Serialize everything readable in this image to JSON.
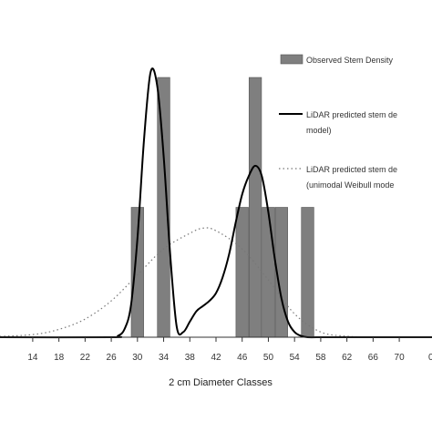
{
  "chart_data": {
    "type": "bar",
    "xlabel": "2 cm Diameter Classes",
    "ylabel": "",
    "xlim": [
      9,
      75
    ],
    "ylim": [
      0,
      1
    ],
    "grid": false,
    "legend_position": "right",
    "colors": {
      "bar_fill": "#7f7f7f",
      "bar_stroke": "#555555",
      "line": "#000000",
      "dotted": "#777777",
      "axis": "#333333"
    },
    "x_ticks": [
      "14",
      "18",
      "22",
      "26",
      "30",
      "34",
      "38",
      "42",
      "46",
      "50",
      "54",
      "58",
      "62",
      "66",
      "70"
    ],
    "x_ticks_partial": [
      "0"
    ],
    "legend": [
      {
        "label": "Observed Stem Density",
        "swatch": "bar"
      },
      {
        "label": "LiDAR predicted stem de",
        "label2": "model)",
        "swatch": "line"
      },
      {
        "label": "LiDAR predicted stem de",
        "label2": "(unimodal Weibull mode",
        "swatch": "dotted"
      }
    ],
    "series": [
      {
        "type": "bar",
        "x": [
          30,
          34,
          46,
          48,
          50,
          52,
          56
        ],
        "values": [
          0.5,
          1.0,
          0.5,
          1.0,
          0.5,
          0.5,
          0.5
        ]
      },
      {
        "type": "line",
        "x": [
          9,
          26,
          27,
          28,
          29,
          30,
          31,
          32,
          33,
          34,
          35,
          36,
          37,
          38,
          39,
          40,
          41,
          42,
          43,
          44,
          45,
          46,
          47,
          48,
          49,
          50,
          51,
          52,
          53,
          54,
          55,
          56,
          58,
          60,
          75
        ],
        "values": [
          0,
          0,
          0.005,
          0.03,
          0.12,
          0.38,
          0.76,
          1.02,
          0.97,
          0.7,
          0.32,
          0.04,
          0.02,
          0.06,
          0.1,
          0.12,
          0.14,
          0.17,
          0.23,
          0.32,
          0.44,
          0.55,
          0.62,
          0.66,
          0.62,
          0.48,
          0.3,
          0.15,
          0.06,
          0.02,
          0.005,
          0,
          0,
          0,
          0
        ]
      },
      {
        "type": "dotted",
        "x": [
          9,
          14,
          18,
          22,
          26,
          30,
          34,
          38,
          40,
          42,
          46,
          50,
          54,
          58,
          62,
          66,
          75
        ],
        "values": [
          0.003,
          0.01,
          0.03,
          0.07,
          0.14,
          0.24,
          0.34,
          0.4,
          0.42,
          0.41,
          0.34,
          0.22,
          0.09,
          0.02,
          0.004,
          0.001,
          0
        ]
      }
    ]
  }
}
